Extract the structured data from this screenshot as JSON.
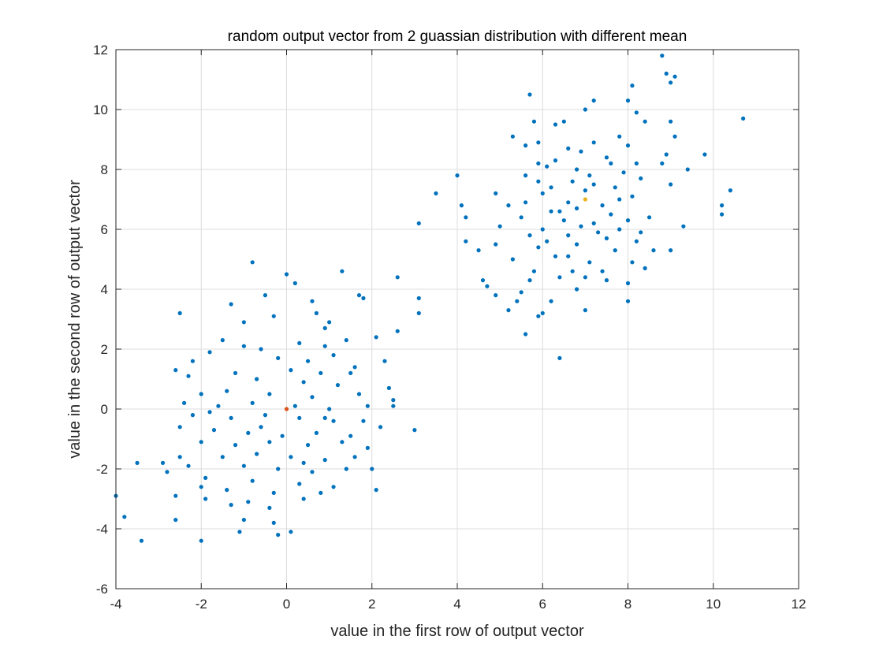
{
  "chart_data": {
    "type": "scatter",
    "title": "random output vector from 2 guassian distribution with different mean",
    "xlabel": "value in the first row of output vector",
    "ylabel": "value in the second row of output vector",
    "xlim": [
      -4,
      12
    ],
    "ylim": [
      -6,
      12
    ],
    "xticks": [
      -4,
      -2,
      0,
      2,
      4,
      6,
      8,
      10,
      12
    ],
    "yticks": [
      -6,
      -4,
      -2,
      0,
      2,
      4,
      6,
      8,
      10,
      12
    ],
    "grid": true,
    "legend": "none",
    "series": [
      {
        "color": "#0072BD",
        "points": [
          [
            -0.8,
            4.9
          ],
          [
            0.0,
            4.5
          ],
          [
            1.3,
            4.6
          ],
          [
            0.2,
            4.2
          ],
          [
            1.8,
            3.7
          ],
          [
            -0.5,
            3.8
          ],
          [
            -1.3,
            3.5
          ],
          [
            0.6,
            3.6
          ],
          [
            -2.5,
            3.2
          ],
          [
            -0.3,
            3.1
          ],
          [
            0.7,
            3.2
          ],
          [
            1.0,
            2.9
          ],
          [
            2.1,
            2.4
          ],
          [
            2.6,
            2.6
          ],
          [
            -1.5,
            2.3
          ],
          [
            -1.0,
            2.1
          ],
          [
            -0.6,
            2.0
          ],
          [
            0.3,
            2.2
          ],
          [
            0.9,
            2.1
          ],
          [
            1.4,
            2.3
          ],
          [
            -1.8,
            1.9
          ],
          [
            -2.2,
            1.6
          ],
          [
            -0.2,
            1.7
          ],
          [
            0.5,
            1.6
          ],
          [
            1.1,
            1.8
          ],
          [
            2.3,
            1.6
          ],
          [
            -2.6,
            1.3
          ],
          [
            -1.2,
            1.2
          ],
          [
            0.1,
            1.3
          ],
          [
            0.8,
            1.2
          ],
          [
            1.6,
            1.4
          ],
          [
            -0.7,
            1.0
          ],
          [
            0.4,
            0.9
          ],
          [
            1.2,
            0.8
          ],
          [
            2.4,
            0.7
          ],
          [
            -2.0,
            0.5
          ],
          [
            -1.4,
            0.6
          ],
          [
            -0.4,
            0.5
          ],
          [
            0.6,
            0.4
          ],
          [
            1.7,
            0.5
          ],
          [
            2.5,
            0.3
          ],
          [
            -2.4,
            0.2
          ],
          [
            -1.6,
            0.1
          ],
          [
            -0.8,
            0.2
          ],
          [
            0.2,
            0.1
          ],
          [
            1.0,
            0.0
          ],
          [
            1.9,
            0.1
          ],
          [
            2.5,
            0.1
          ],
          [
            -2.2,
            -0.2
          ],
          [
            -1.3,
            -0.3
          ],
          [
            -0.5,
            -0.2
          ],
          [
            0.3,
            -0.3
          ],
          [
            1.1,
            -0.4
          ],
          [
            2.2,
            -0.6
          ],
          [
            3.0,
            -0.7
          ],
          [
            -2.5,
            -0.6
          ],
          [
            -1.7,
            -0.7
          ],
          [
            -0.9,
            -0.8
          ],
          [
            -0.1,
            -0.9
          ],
          [
            0.7,
            -0.8
          ],
          [
            1.5,
            -0.9
          ],
          [
            -2.0,
            -1.1
          ],
          [
            -1.2,
            -1.2
          ],
          [
            -0.4,
            -1.1
          ],
          [
            0.5,
            -1.2
          ],
          [
            1.3,
            -1.1
          ],
          [
            1.9,
            -1.3
          ],
          [
            -2.5,
            -1.6
          ],
          [
            -1.5,
            -1.6
          ],
          [
            -0.7,
            -1.5
          ],
          [
            0.1,
            -1.6
          ],
          [
            0.9,
            -1.7
          ],
          [
            1.6,
            -1.6
          ],
          [
            -2.9,
            -1.8
          ],
          [
            -2.3,
            -1.9
          ],
          [
            -1.0,
            -1.9
          ],
          [
            -0.2,
            -2.0
          ],
          [
            0.6,
            -2.1
          ],
          [
            1.4,
            -2.0
          ],
          [
            2.0,
            -2.0
          ],
          [
            -3.5,
            -1.8
          ],
          [
            -2.8,
            -2.1
          ],
          [
            -1.9,
            -2.3
          ],
          [
            -0.8,
            -2.4
          ],
          [
            0.3,
            -2.5
          ],
          [
            1.1,
            -2.6
          ],
          [
            -2.0,
            -2.6
          ],
          [
            -1.4,
            -2.7
          ],
          [
            -0.3,
            -2.8
          ],
          [
            0.8,
            -2.8
          ],
          [
            2.1,
            -2.7
          ],
          [
            -2.6,
            -2.9
          ],
          [
            -1.9,
            -3.0
          ],
          [
            -0.9,
            -3.1
          ],
          [
            0.4,
            -3.0
          ],
          [
            -1.3,
            -3.2
          ],
          [
            -0.4,
            -3.3
          ],
          [
            -2.6,
            -3.7
          ],
          [
            -1.0,
            -3.7
          ],
          [
            -0.3,
            -3.8
          ],
          [
            -1.1,
            -4.1
          ],
          [
            0.1,
            -4.1
          ],
          [
            -0.2,
            -4.2
          ],
          [
            -3.8,
            -3.6
          ],
          [
            -4.0,
            -2.9
          ],
          [
            -3.4,
            -4.4
          ],
          [
            -2.0,
            -4.4
          ],
          [
            -2.3,
            1.1
          ],
          [
            -1.8,
            -0.1
          ],
          [
            0.9,
            -0.3
          ],
          [
            3.1,
            3.7
          ],
          [
            3.1,
            3.2
          ],
          [
            2.6,
            4.4
          ],
          [
            1.7,
            3.8
          ],
          [
            0.9,
            2.7
          ],
          [
            -1.0,
            2.9
          ],
          [
            1.5,
            1.2
          ],
          [
            -0.6,
            -0.6
          ],
          [
            0.4,
            -1.8
          ],
          [
            1.8,
            -0.4
          ]
        ]
      },
      {
        "color": "#0072BD",
        "points": [
          [
            8.8,
            11.8
          ],
          [
            9.1,
            11.1
          ],
          [
            8.9,
            11.2
          ],
          [
            9.0,
            10.9
          ],
          [
            8.1,
            10.8
          ],
          [
            7.2,
            10.3
          ],
          [
            5.7,
            10.5
          ],
          [
            7.0,
            10.0
          ],
          [
            8.0,
            10.3
          ],
          [
            10.7,
            9.7
          ],
          [
            8.2,
            9.9
          ],
          [
            6.3,
            9.5
          ],
          [
            6.5,
            9.6
          ],
          [
            5.8,
            9.6
          ],
          [
            8.4,
            9.6
          ],
          [
            9.0,
            9.6
          ],
          [
            9.1,
            9.1
          ],
          [
            5.3,
            9.1
          ],
          [
            7.8,
            9.1
          ],
          [
            5.9,
            8.9
          ],
          [
            7.2,
            8.9
          ],
          [
            8.0,
            8.8
          ],
          [
            6.6,
            8.7
          ],
          [
            5.6,
            8.8
          ],
          [
            6.9,
            8.6
          ],
          [
            8.9,
            8.5
          ],
          [
            9.8,
            8.5
          ],
          [
            6.3,
            8.3
          ],
          [
            7.5,
            8.4
          ],
          [
            5.9,
            8.2
          ],
          [
            8.2,
            8.2
          ],
          [
            9.4,
            8.0
          ],
          [
            8.8,
            8.2
          ],
          [
            6.1,
            8.1
          ],
          [
            6.8,
            8.0
          ],
          [
            7.9,
            7.9
          ],
          [
            4.0,
            7.8
          ],
          [
            5.6,
            7.8
          ],
          [
            8.3,
            7.7
          ],
          [
            6.7,
            7.6
          ],
          [
            7.2,
            7.5
          ],
          [
            9.0,
            7.5
          ],
          [
            6.2,
            7.4
          ],
          [
            7.7,
            7.4
          ],
          [
            3.5,
            7.2
          ],
          [
            4.9,
            7.2
          ],
          [
            6.0,
            7.2
          ],
          [
            7.0,
            7.3
          ],
          [
            8.1,
            7.1
          ],
          [
            10.4,
            7.3
          ],
          [
            5.6,
            6.9
          ],
          [
            6.6,
            6.9
          ],
          [
            7.4,
            6.8
          ],
          [
            10.2,
            6.8
          ],
          [
            4.1,
            6.8
          ],
          [
            5.2,
            6.8
          ],
          [
            6.2,
            6.6
          ],
          [
            7.6,
            6.5
          ],
          [
            8.5,
            6.4
          ],
          [
            10.2,
            6.5
          ],
          [
            4.2,
            6.4
          ],
          [
            5.5,
            6.4
          ],
          [
            6.5,
            6.3
          ],
          [
            7.2,
            6.2
          ],
          [
            8.0,
            6.3
          ],
          [
            3.1,
            6.2
          ],
          [
            5.0,
            6.1
          ],
          [
            6.0,
            6.0
          ],
          [
            6.9,
            6.1
          ],
          [
            7.8,
            6.0
          ],
          [
            9.3,
            6.1
          ],
          [
            4.2,
            5.6
          ],
          [
            5.7,
            5.8
          ],
          [
            6.6,
            5.8
          ],
          [
            7.5,
            5.7
          ],
          [
            8.2,
            5.6
          ],
          [
            4.9,
            5.5
          ],
          [
            5.9,
            5.4
          ],
          [
            6.8,
            5.5
          ],
          [
            7.7,
            5.3
          ],
          [
            8.6,
            5.3
          ],
          [
            9.0,
            5.3
          ],
          [
            4.5,
            5.3
          ],
          [
            5.3,
            5.0
          ],
          [
            6.3,
            5.1
          ],
          [
            7.1,
            4.9
          ],
          [
            8.1,
            4.9
          ],
          [
            5.8,
            4.6
          ],
          [
            6.7,
            4.6
          ],
          [
            7.4,
            4.6
          ],
          [
            8.4,
            4.7
          ],
          [
            4.6,
            4.3
          ],
          [
            5.7,
            4.3
          ],
          [
            6.4,
            4.4
          ],
          [
            7.5,
            4.3
          ],
          [
            8.0,
            4.2
          ],
          [
            4.7,
            4.1
          ],
          [
            5.5,
            3.9
          ],
          [
            6.8,
            4.0
          ],
          [
            4.9,
            3.8
          ],
          [
            5.4,
            3.6
          ],
          [
            6.2,
            3.6
          ],
          [
            8.0,
            3.6
          ],
          [
            5.2,
            3.3
          ],
          [
            6.0,
            3.2
          ],
          [
            7.0,
            3.3
          ],
          [
            5.9,
            3.1
          ],
          [
            5.6,
            2.5
          ],
          [
            6.4,
            1.7
          ],
          [
            6.8,
            6.7
          ],
          [
            7.1,
            7.8
          ],
          [
            6.4,
            6.6
          ],
          [
            7.3,
            5.9
          ],
          [
            6.6,
            5.1
          ],
          [
            7.0,
            4.4
          ],
          [
            5.9,
            7.6
          ],
          [
            8.3,
            5.9
          ],
          [
            7.8,
            7.0
          ],
          [
            6.1,
            5.6
          ],
          [
            7.6,
            8.2
          ]
        ]
      },
      {
        "color": "#D95319",
        "points": [
          [
            0,
            0
          ]
        ]
      },
      {
        "color": "#EDB120",
        "points": [
          [
            7,
            7
          ]
        ]
      }
    ]
  }
}
